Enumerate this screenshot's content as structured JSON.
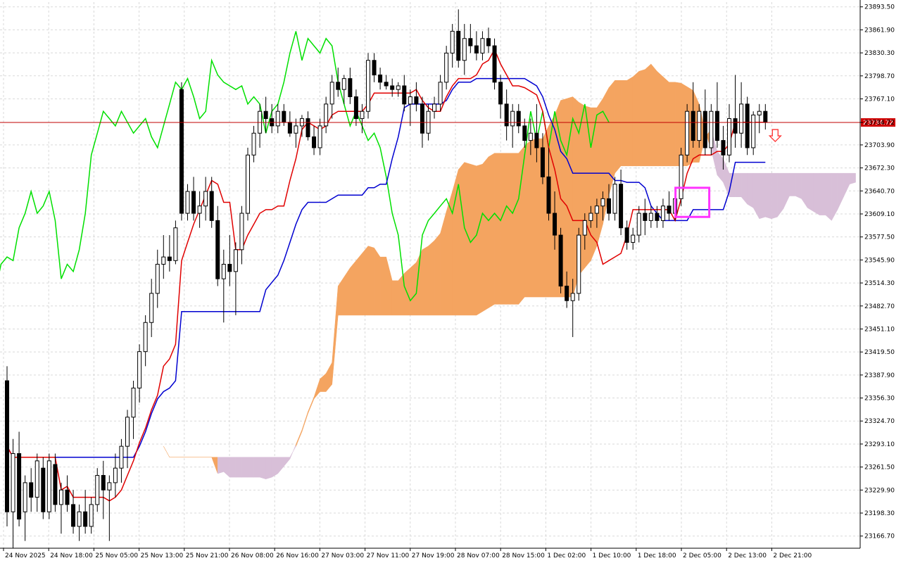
{
  "chart_data": {
    "type": "candlestick",
    "instrument_note": "",
    "colors": {
      "background": "#ffffff",
      "grid": "#d9d9d9",
      "candle_bull_body": "#ffffff",
      "candle_bear_body": "#000000",
      "candle_outline": "#000000",
      "tenkan": "#e00000",
      "kijun": "#0000d0",
      "chikou": "#00e000",
      "kumo_bull": "#f4a460",
      "kumo_bear": "#d8bfd8",
      "price_line": "#c00000",
      "price_tag": "#d00000",
      "highlight_box": "#ff33ff",
      "arrow": "#ff3333"
    },
    "y_axis": {
      "min": 23150,
      "max": 23900,
      "ticks": [
        "23893.50",
        "23861.90",
        "23830.30",
        "23798.70",
        "23767.10",
        "23734.72",
        "23703.90",
        "23672.30",
        "23640.70",
        "23609.10",
        "23577.50",
        "23545.90",
        "23514.30",
        "23482.70",
        "23451.10",
        "23419.50",
        "23387.90",
        "23356.30",
        "23324.70",
        "23293.10",
        "23261.50",
        "23229.90",
        "23198.30",
        "23166.70"
      ]
    },
    "x_axis": {
      "ticks": [
        "24 Nov 2025",
        "24 Nov 18:00",
        "25 Nov 05:00",
        "25 Nov 13:00",
        "25 Nov 21:00",
        "26 Nov 08:00",
        "26 Nov 16:00",
        "27 Nov 03:00",
        "27 Nov 11:00",
        "27 Nov 19:00",
        "28 Nov 07:00",
        "28 Nov 15:00",
        "1 Dec 02:00",
        "1 Dec 10:00",
        "1 Dec 18:00",
        "2 Dec 05:00",
        "2 Dec 13:00",
        "2 Dec 21:00"
      ]
    },
    "current_price": 23734.72,
    "candles": [
      {
        "o": 23380,
        "h": 23400,
        "l": 23180,
        "c": 23200
      },
      {
        "o": 23200,
        "h": 23300,
        "l": 23150,
        "c": 23280
      },
      {
        "o": 23280,
        "h": 23310,
        "l": 23180,
        "c": 23190
      },
      {
        "o": 23200,
        "h": 23250,
        "l": 23160,
        "c": 23240
      },
      {
        "o": 23240,
        "h": 23260,
        "l": 23200,
        "c": 23220
      },
      {
        "o": 23220,
        "h": 23280,
        "l": 23200,
        "c": 23270
      },
      {
        "o": 23260,
        "h": 23275,
        "l": 23190,
        "c": 23200
      },
      {
        "o": 23200,
        "h": 23280,
        "l": 23190,
        "c": 23270
      },
      {
        "o": 23265,
        "h": 23280,
        "l": 23200,
        "c": 23210
      },
      {
        "o": 23210,
        "h": 23240,
        "l": 23170,
        "c": 23230
      },
      {
        "o": 23230,
        "h": 23250,
        "l": 23200,
        "c": 23210
      },
      {
        "o": 23210,
        "h": 23230,
        "l": 23170,
        "c": 23180
      },
      {
        "o": 23180,
        "h": 23210,
        "l": 23160,
        "c": 23200
      },
      {
        "o": 23200,
        "h": 23230,
        "l": 23170,
        "c": 23180
      },
      {
        "o": 23180,
        "h": 23220,
        "l": 23170,
        "c": 23210
      },
      {
        "o": 23210,
        "h": 23260,
        "l": 23200,
        "c": 23250
      },
      {
        "o": 23250,
        "h": 23270,
        "l": 23190,
        "c": 23230
      },
      {
        "o": 23230,
        "h": 23250,
        "l": 23160,
        "c": 23240
      },
      {
        "o": 23240,
        "h": 23280,
        "l": 23220,
        "c": 23260
      },
      {
        "o": 23260,
        "h": 23300,
        "l": 23240,
        "c": 23290
      },
      {
        "o": 23290,
        "h": 23340,
        "l": 23260,
        "c": 23330
      },
      {
        "o": 23330,
        "h": 23380,
        "l": 23300,
        "c": 23370
      },
      {
        "o": 23370,
        "h": 23430,
        "l": 23350,
        "c": 23420
      },
      {
        "o": 23420,
        "h": 23470,
        "l": 23400,
        "c": 23460
      },
      {
        "o": 23460,
        "h": 23520,
        "l": 23440,
        "c": 23500
      },
      {
        "o": 23500,
        "h": 23560,
        "l": 23480,
        "c": 23540
      },
      {
        "o": 23540,
        "h": 23580,
        "l": 23520,
        "c": 23550
      },
      {
        "o": 23550,
        "h": 23580,
        "l": 23530,
        "c": 23545
      },
      {
        "o": 23545,
        "h": 23600,
        "l": 23540,
        "c": 23590
      },
      {
        "o": 23780,
        "h": 23790,
        "l": 23600,
        "c": 23610
      },
      {
        "o": 23610,
        "h": 23650,
        "l": 23600,
        "c": 23640
      },
      {
        "o": 23640,
        "h": 23660,
        "l": 23600,
        "c": 23610
      },
      {
        "o": 23610,
        "h": 23640,
        "l": 23590,
        "c": 23620
      },
      {
        "o": 23620,
        "h": 23660,
        "l": 23600,
        "c": 23640
      },
      {
        "o": 23640,
        "h": 23660,
        "l": 23590,
        "c": 23600
      },
      {
        "o": 23600,
        "h": 23620,
        "l": 23510,
        "c": 23520
      },
      {
        "o": 23520,
        "h": 23560,
        "l": 23460,
        "c": 23540
      },
      {
        "o": 23540,
        "h": 23580,
        "l": 23510,
        "c": 23530
      },
      {
        "o": 23530,
        "h": 23570,
        "l": 23470,
        "c": 23560
      },
      {
        "o": 23560,
        "h": 23620,
        "l": 23540,
        "c": 23610
      },
      {
        "o": 23610,
        "h": 23700,
        "l": 23600,
        "c": 23690
      },
      {
        "o": 23690,
        "h": 23730,
        "l": 23680,
        "c": 23720
      },
      {
        "o": 23720,
        "h": 23760,
        "l": 23700,
        "c": 23750
      },
      {
        "o": 23750,
        "h": 23770,
        "l": 23720,
        "c": 23740
      },
      {
        "o": 23740,
        "h": 23760,
        "l": 23720,
        "c": 23730
      },
      {
        "o": 23730,
        "h": 23760,
        "l": 23720,
        "c": 23750
      },
      {
        "o": 23750,
        "h": 23760,
        "l": 23730,
        "c": 23735
      },
      {
        "o": 23735,
        "h": 23750,
        "l": 23715,
        "c": 23720
      },
      {
        "o": 23720,
        "h": 23740,
        "l": 23700,
        "c": 23730
      },
      {
        "o": 23730,
        "h": 23745,
        "l": 23715,
        "c": 23740
      },
      {
        "o": 23740,
        "h": 23750,
        "l": 23710,
        "c": 23715
      },
      {
        "o": 23715,
        "h": 23730,
        "l": 23690,
        "c": 23700
      },
      {
        "o": 23700,
        "h": 23740,
        "l": 23690,
        "c": 23730
      },
      {
        "o": 23730,
        "h": 23770,
        "l": 23720,
        "c": 23760
      },
      {
        "o": 23760,
        "h": 23800,
        "l": 23740,
        "c": 23790
      },
      {
        "o": 23790,
        "h": 23810,
        "l": 23770,
        "c": 23780
      },
      {
        "o": 23780,
        "h": 23800,
        "l": 23760,
        "c": 23795
      },
      {
        "o": 23795,
        "h": 23810,
        "l": 23760,
        "c": 23770
      },
      {
        "o": 23770,
        "h": 23780,
        "l": 23730,
        "c": 23740
      },
      {
        "o": 23740,
        "h": 23760,
        "l": 23720,
        "c": 23750
      },
      {
        "o": 23750,
        "h": 23830,
        "l": 23740,
        "c": 23820
      },
      {
        "o": 23820,
        "h": 23830,
        "l": 23790,
        "c": 23800
      },
      {
        "o": 23800,
        "h": 23810,
        "l": 23780,
        "c": 23790
      },
      {
        "o": 23790,
        "h": 23800,
        "l": 23780,
        "c": 23785
      },
      {
        "o": 23785,
        "h": 23795,
        "l": 23770,
        "c": 23780
      },
      {
        "o": 23780,
        "h": 23790,
        "l": 23770,
        "c": 23785
      },
      {
        "o": 23785,
        "h": 23800,
        "l": 23750,
        "c": 23760
      },
      {
        "o": 23760,
        "h": 23780,
        "l": 23730,
        "c": 23770
      },
      {
        "o": 23770,
        "h": 23790,
        "l": 23750,
        "c": 23760
      },
      {
        "o": 23760,
        "h": 23770,
        "l": 23700,
        "c": 23720
      },
      {
        "o": 23720,
        "h": 23760,
        "l": 23710,
        "c": 23750
      },
      {
        "o": 23750,
        "h": 23770,
        "l": 23740,
        "c": 23760
      },
      {
        "o": 23760,
        "h": 23800,
        "l": 23750,
        "c": 23790
      },
      {
        "o": 23790,
        "h": 23840,
        "l": 23780,
        "c": 23830
      },
      {
        "o": 23830,
        "h": 23870,
        "l": 23810,
        "c": 23860
      },
      {
        "o": 23860,
        "h": 23890,
        "l": 23810,
        "c": 23820
      },
      {
        "o": 23820,
        "h": 23870,
        "l": 23800,
        "c": 23850
      },
      {
        "o": 23850,
        "h": 23870,
        "l": 23830,
        "c": 23840
      },
      {
        "o": 23840,
        "h": 23860,
        "l": 23820,
        "c": 23830
      },
      {
        "o": 23830,
        "h": 23860,
        "l": 23820,
        "c": 23850
      },
      {
        "o": 23850,
        "h": 23865,
        "l": 23830,
        "c": 23840
      },
      {
        "o": 23840,
        "h": 23850,
        "l": 23780,
        "c": 23790
      },
      {
        "o": 23790,
        "h": 23800,
        "l": 23740,
        "c": 23760
      },
      {
        "o": 23760,
        "h": 23780,
        "l": 23710,
        "c": 23730
      },
      {
        "o": 23730,
        "h": 23760,
        "l": 23700,
        "c": 23750
      },
      {
        "o": 23750,
        "h": 23760,
        "l": 23720,
        "c": 23730
      },
      {
        "o": 23730,
        "h": 23740,
        "l": 23700,
        "c": 23710
      },
      {
        "o": 23710,
        "h": 23740,
        "l": 23690,
        "c": 23720
      },
      {
        "o": 23720,
        "h": 23760,
        "l": 23680,
        "c": 23700
      },
      {
        "o": 23700,
        "h": 23720,
        "l": 23650,
        "c": 23660
      },
      {
        "o": 23660,
        "h": 23700,
        "l": 23600,
        "c": 23610
      },
      {
        "o": 23610,
        "h": 23640,
        "l": 23560,
        "c": 23580
      },
      {
        "o": 23580,
        "h": 23590,
        "l": 23500,
        "c": 23510
      },
      {
        "o": 23510,
        "h": 23530,
        "l": 23480,
        "c": 23490
      },
      {
        "o": 23490,
        "h": 23520,
        "l": 23440,
        "c": 23500
      },
      {
        "o": 23500,
        "h": 23590,
        "l": 23490,
        "c": 23580
      },
      {
        "o": 23580,
        "h": 23610,
        "l": 23560,
        "c": 23600
      },
      {
        "o": 23600,
        "h": 23620,
        "l": 23590,
        "c": 23610
      },
      {
        "o": 23610,
        "h": 23630,
        "l": 23590,
        "c": 23620
      },
      {
        "o": 23620,
        "h": 23640,
        "l": 23600,
        "c": 23630
      },
      {
        "o": 23630,
        "h": 23650,
        "l": 23600,
        "c": 23610
      },
      {
        "o": 23610,
        "h": 23660,
        "l": 23600,
        "c": 23650
      },
      {
        "o": 23650,
        "h": 23670,
        "l": 23580,
        "c": 23590
      },
      {
        "o": 23590,
        "h": 23600,
        "l": 23560,
        "c": 23570
      },
      {
        "o": 23570,
        "h": 23590,
        "l": 23560,
        "c": 23580
      },
      {
        "o": 23580,
        "h": 23620,
        "l": 23570,
        "c": 23610
      },
      {
        "o": 23610,
        "h": 23630,
        "l": 23580,
        "c": 23600
      },
      {
        "o": 23600,
        "h": 23620,
        "l": 23590,
        "c": 23610
      },
      {
        "o": 23610,
        "h": 23620,
        "l": 23590,
        "c": 23600
      },
      {
        "o": 23600,
        "h": 23630,
        "l": 23590,
        "c": 23620
      },
      {
        "o": 23620,
        "h": 23640,
        "l": 23600,
        "c": 23610
      },
      {
        "o": 23610,
        "h": 23640,
        "l": 23600,
        "c": 23630
      },
      {
        "o": 23630,
        "h": 23700,
        "l": 23620,
        "c": 23690
      },
      {
        "o": 23690,
        "h": 23760,
        "l": 23680,
        "c": 23750
      },
      {
        "o": 23750,
        "h": 23790,
        "l": 23700,
        "c": 23710
      },
      {
        "o": 23710,
        "h": 23760,
        "l": 23700,
        "c": 23750
      },
      {
        "o": 23750,
        "h": 23780,
        "l": 23690,
        "c": 23700
      },
      {
        "o": 23700,
        "h": 23760,
        "l": 23690,
        "c": 23750
      },
      {
        "o": 23750,
        "h": 23790,
        "l": 23700,
        "c": 23710
      },
      {
        "o": 23710,
        "h": 23730,
        "l": 23670,
        "c": 23690
      },
      {
        "o": 23690,
        "h": 23760,
        "l": 23680,
        "c": 23740
      },
      {
        "o": 23740,
        "h": 23800,
        "l": 23700,
        "c": 23720
      },
      {
        "o": 23720,
        "h": 23790,
        "l": 23700,
        "c": 23760
      },
      {
        "o": 23760,
        "h": 23770,
        "l": 23690,
        "c": 23700
      },
      {
        "o": 23700,
        "h": 23750,
        "l": 23690,
        "c": 23745
      },
      {
        "o": 23745,
        "h": 23760,
        "l": 23720,
        "c": 23750
      },
      {
        "o": 23750,
        "h": 23760,
        "l": 23725,
        "c": 23735
      }
    ]
  }
}
